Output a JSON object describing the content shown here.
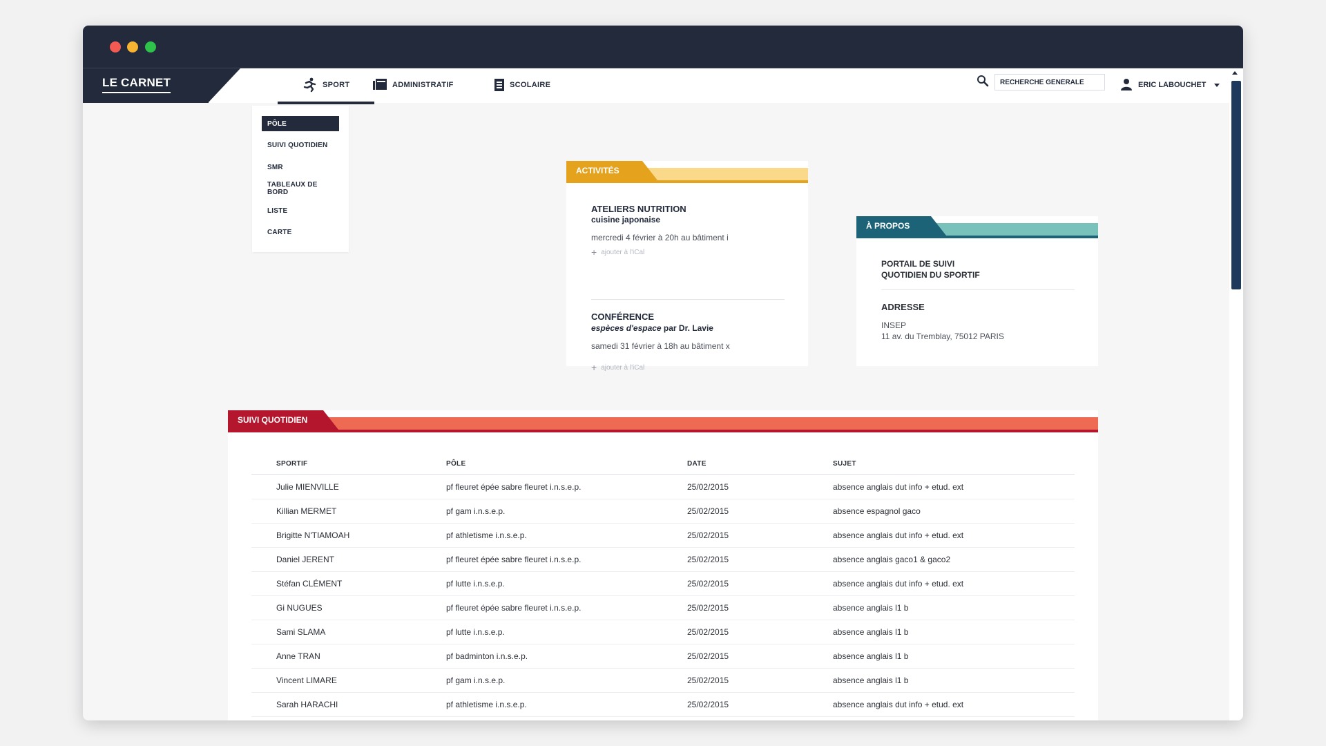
{
  "app": {
    "logo": "LE CARNET"
  },
  "nav": {
    "sport": "SPORT",
    "administratif": "ADMINISTRATIF",
    "scolaire": "SCOLAIRE",
    "search_placeholder": "RECHERCHE GÉNÉRALE",
    "user": "ERIC LABOUCHET"
  },
  "sport_menu": {
    "items": [
      {
        "label": "PÔLE",
        "active": true
      },
      {
        "label": "SUIVI QUOTIDIEN"
      },
      {
        "label": "SMR"
      },
      {
        "label": "TABLEAUX DE BORD"
      },
      {
        "label": "LISTE"
      },
      {
        "label": "CARTE"
      }
    ]
  },
  "activites": {
    "title": "ACTIVITÉS",
    "items": [
      {
        "title": "ATELIERS NUTRITION",
        "subtitle": "cuisine japonaise",
        "when": "mercredi 4 février à 20h au bâtiment i",
        "ical": "ajouter à l'iCal"
      },
      {
        "title": "CONFÉRENCE",
        "subtitle_em": "espèces d'espace",
        "subtitle_rest": " par Dr. Lavie",
        "when": "samedi 31 février à 18h au bâtiment x",
        "ical": "ajouter à l'iCal"
      }
    ]
  },
  "apropos": {
    "title": "À PROPOS",
    "portal_line1": "PORTAIL DE SUIVI",
    "portal_line2": "QUOTIDIEN DU SPORTIF",
    "address_label": "ADRESSE",
    "address_line1": "INSEP",
    "address_line2": "11 av. du Tremblay, 75012 PARIS"
  },
  "suivi": {
    "title": "SUIVI QUOTIDIEN",
    "columns": [
      "SPORTIF",
      "PÔLE",
      "DATE",
      "SUJET"
    ],
    "rows": [
      [
        "Julie MIENVILLE",
        "pf fleuret épée sabre fleuret i.n.s.e.p.",
        "25/02/2015",
        "absence anglais dut info + etud. ext"
      ],
      [
        "Killian MERMET",
        "pf gam i.n.s.e.p.",
        "25/02/2015",
        "absence espagnol gaco"
      ],
      [
        "Brigitte N'TIAMOAH",
        "pf athletisme i.n.s.e.p.",
        "25/02/2015",
        "absence anglais dut info + etud. ext"
      ],
      [
        "Daniel JERENT",
        "pf fleuret épée sabre fleuret i.n.s.e.p.",
        "25/02/2015",
        "absence anglais gaco1 & gaco2"
      ],
      [
        "Stéfan CLÉMENT",
        "pf lutte i.n.s.e.p.",
        "25/02/2015",
        "absence anglais dut info + etud. ext"
      ],
      [
        "Gi NUGUES",
        "pf fleuret épée sabre fleuret i.n.s.e.p.",
        "25/02/2015",
        "absence anglais l1 b"
      ],
      [
        "Sami SLAMA",
        "pf lutte i.n.s.e.p.",
        "25/02/2015",
        "absence anglais l1 b"
      ],
      [
        "Anne TRAN",
        "pf badminton i.n.s.e.p.",
        "25/02/2015",
        "absence anglais l1 b"
      ],
      [
        "Vincent LIMARE",
        "pf gam i.n.s.e.p.",
        "25/02/2015",
        "absence anglais l1 b"
      ],
      [
        "Sarah HARACHI",
        "pf athletisme i.n.s.e.p.",
        "25/02/2015",
        "absence anglais dut info + etud. ext"
      ]
    ]
  },
  "colors": {
    "navy": "#222a3b",
    "activites_dark": "#e5a21c",
    "activites_light": "#fbd98b",
    "apropos_dark": "#1c6378",
    "apropos_light": "#79c2bb",
    "suivi_dark": "#b3162d",
    "suivi_light": "#ee6a52"
  }
}
